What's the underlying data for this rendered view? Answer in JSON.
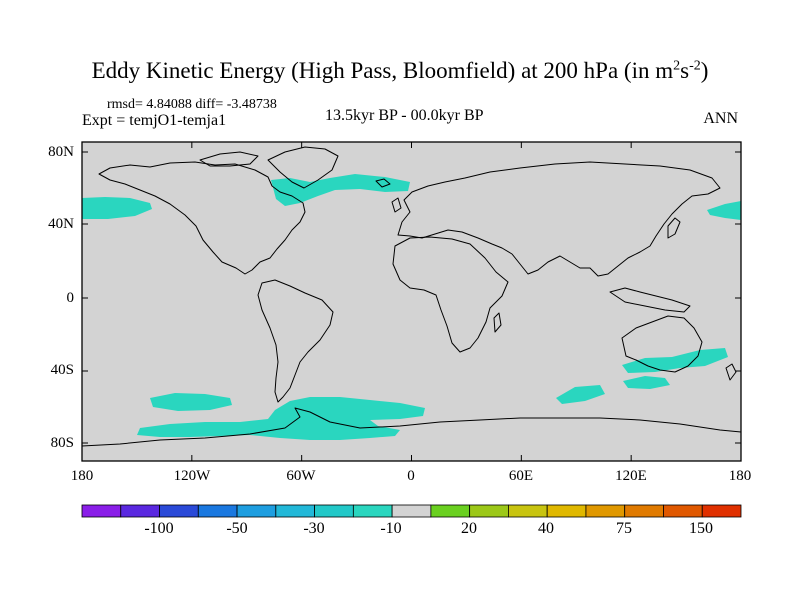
{
  "header": {
    "title_main": "Eddy Kinetic Energy (High Pass, Bloomfield) at 200 hPa (in m",
    "title_sup1": "2",
    "title_mid": "s",
    "title_sup2": "-2",
    "title_end": ")",
    "stats": "rmsd= 4.84088 diff= -3.48738",
    "expt": "Expt = temjO1-temja1",
    "period": "13.5kyr BP - 00.0kyr BP",
    "season": "ANN"
  },
  "map": {
    "land_ocean_fill": "#d3d3d3",
    "anomaly_fill": "#2ad6bf",
    "coast_color": "#000000",
    "lat_labels": [
      "80N",
      "40N",
      "0",
      "40S",
      "80S"
    ],
    "lon_labels": [
      "180",
      "120W",
      "60W",
      "0",
      "60E",
      "120E",
      "180"
    ]
  },
  "colorbar": {
    "colors": [
      "#8a1ee8",
      "#5a28e0",
      "#2a4ad8",
      "#1a78e0",
      "#1e9ee0",
      "#22b8d8",
      "#22c8c8",
      "#2ad6bf",
      "#d3d3d3",
      "#6ad020",
      "#9cc818",
      "#c8c410",
      "#e0b800",
      "#e09800",
      "#e07a00",
      "#e05800",
      "#e03000"
    ],
    "labels": [
      "-100",
      "-50",
      "-30",
      "-10",
      "20",
      "40",
      "75",
      "150"
    ]
  }
}
